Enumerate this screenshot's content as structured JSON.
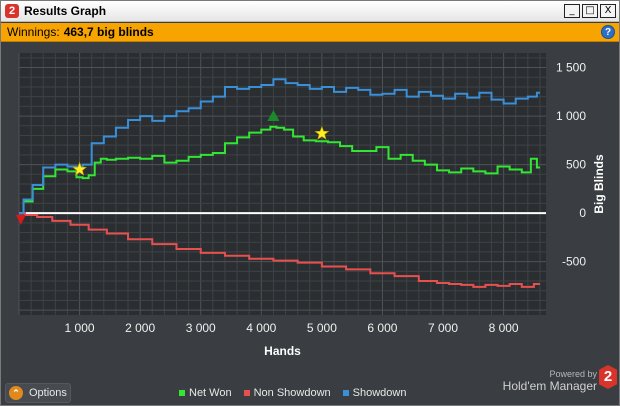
{
  "window": {
    "title": "Results Graph",
    "app_badge": "2",
    "controls": {
      "minimize": "_",
      "maximize": "□",
      "close": "X"
    }
  },
  "winnings": {
    "label": "Winnings:",
    "value": "463,7 big blinds",
    "help": "?"
  },
  "footer": {
    "options_label": "Options",
    "powered_by": "Powered by",
    "brand": "Hold'em Manager",
    "brand_badge": "2"
  },
  "colors": {
    "net_won": "#33e633",
    "non_showdown": "#e85050",
    "showdown": "#3a8fd9",
    "background": "#3a3d41",
    "marker_star": "#ffee22",
    "marker_peak": "#1c8a2a",
    "marker_low": "#d81a1a"
  },
  "chart_data": {
    "type": "line",
    "xlabel": "Hands",
    "ylabel": "Big Blinds",
    "xlim": [
      0,
      8700
    ],
    "ylim": [
      -1050,
      1650
    ],
    "x_ticks": [
      1000,
      2000,
      3000,
      4000,
      5000,
      6000,
      7000,
      8000
    ],
    "x_tick_labels": [
      "1 000",
      "2 000",
      "3 000",
      "4 000",
      "5 000",
      "6 000",
      "7 000",
      "8 000"
    ],
    "y_ticks": [
      1500,
      1000,
      500,
      0,
      -500
    ],
    "y_tick_labels": [
      "1 500",
      "1 000",
      "500",
      "0",
      "-500"
    ],
    "grid": true,
    "zero_line": true,
    "legend_position": "bottom",
    "series": [
      {
        "name": "Net Won",
        "color": "#33e633",
        "x": [
          0,
          150,
          300,
          500,
          700,
          900,
          1000,
          1100,
          1200,
          1300,
          1400,
          1500,
          1700,
          1900,
          2100,
          2300,
          2500,
          2700,
          2900,
          3100,
          3300,
          3500,
          3700,
          3900,
          4100,
          4200,
          4300,
          4450,
          4600,
          4800,
          5000,
          5200,
          5400,
          5600,
          5800,
          6000,
          6200,
          6400,
          6600,
          6800,
          7000,
          7200,
          7400,
          7600,
          7800,
          8000,
          8200,
          8400,
          8500,
          8600
        ],
        "y": [
          0,
          120,
          250,
          380,
          450,
          430,
          370,
          360,
          390,
          520,
          560,
          550,
          560,
          570,
          560,
          590,
          520,
          540,
          580,
          600,
          620,
          720,
          780,
          830,
          860,
          890,
          880,
          860,
          790,
          750,
          740,
          730,
          690,
          640,
          640,
          680,
          560,
          600,
          540,
          500,
          440,
          420,
          460,
          430,
          410,
          480,
          450,
          420,
          560,
          470
        ]
      },
      {
        "name": "Non Showdown",
        "color": "#e85050",
        "x": [
          0,
          200,
          400,
          700,
          1000,
          1300,
          1600,
          2000,
          2400,
          2800,
          3200,
          3600,
          4000,
          4400,
          4800,
          5200,
          5600,
          6000,
          6400,
          6800,
          7000,
          7200,
          7400,
          7600,
          7800,
          8000,
          8200,
          8400,
          8600
        ],
        "y": [
          0,
          -20,
          -40,
          -80,
          -120,
          -170,
          -210,
          -270,
          -320,
          -370,
          -410,
          -440,
          -470,
          -490,
          -510,
          -550,
          -580,
          -620,
          -650,
          -700,
          -720,
          -730,
          -740,
          -760,
          -740,
          -750,
          -730,
          -760,
          -730
        ]
      },
      {
        "name": "Showdown",
        "color": "#3a8fd9",
        "x": [
          0,
          150,
          300,
          500,
          700,
          900,
          1000,
          1100,
          1300,
          1500,
          1700,
          1900,
          2100,
          2300,
          2500,
          2700,
          2900,
          3100,
          3300,
          3500,
          3700,
          3900,
          4100,
          4300,
          4500,
          4700,
          4900,
          5100,
          5300,
          5500,
          5700,
          5900,
          6100,
          6300,
          6500,
          6700,
          6900,
          7100,
          7300,
          7500,
          7700,
          7900,
          8100,
          8300,
          8500,
          8600
        ],
        "y": [
          0,
          140,
          290,
          470,
          500,
          480,
          460,
          500,
          720,
          790,
          880,
          960,
          1000,
          950,
          1000,
          1050,
          1080,
          1150,
          1200,
          1300,
          1280,
          1300,
          1320,
          1380,
          1340,
          1320,
          1280,
          1300,
          1250,
          1290,
          1270,
          1220,
          1230,
          1270,
          1200,
          1250,
          1210,
          1180,
          1230,
          1190,
          1240,
          1170,
          1130,
          1180,
          1200,
          1240
        ]
      }
    ],
    "markers": [
      {
        "kind": "star",
        "x": 1000,
        "y": 450
      },
      {
        "kind": "star",
        "x": 5000,
        "y": 820
      },
      {
        "kind": "peak",
        "x": 4200,
        "y": 990
      },
      {
        "kind": "low",
        "x": 30,
        "y": -80
      }
    ]
  }
}
